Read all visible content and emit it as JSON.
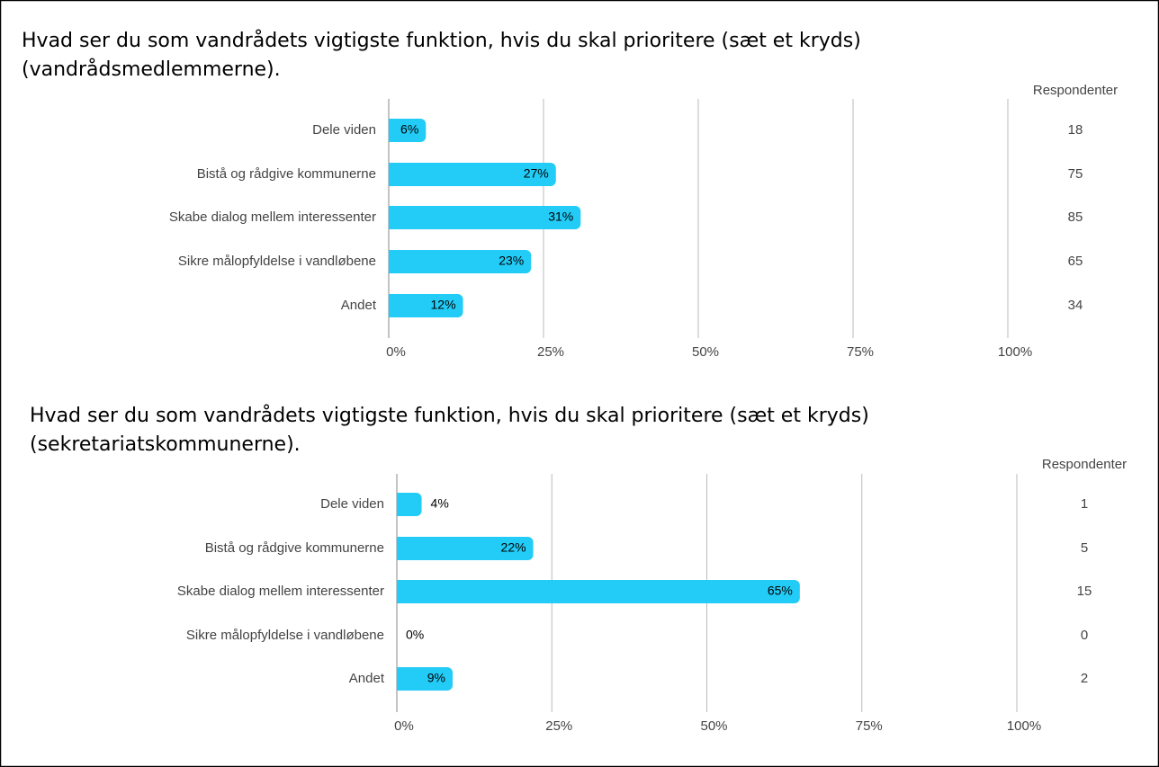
{
  "chart_data": [
    {
      "type": "bar",
      "title": [
        "Hvad ser du som vandrådets vigtigste funktion, hvis du skal prioritere (sæt et kryds)",
        "(vandrådsmedlemmerne)."
      ],
      "categories": [
        "Dele viden",
        "Bistå og rådgive kommunerne",
        "Skabe dialog mellem interessenter",
        "Sikre målopfyldelse i vandløbene",
        "Andet"
      ],
      "values": [
        6,
        27,
        31,
        23,
        12
      ],
      "value_labels": [
        "6%",
        "27%",
        "31%",
        "23%",
        "12%"
      ],
      "color": "#22ccf7",
      "xlim": [
        0,
        100
      ],
      "xticks": [
        {
          "value": 0,
          "label": "0%"
        },
        {
          "value": 25,
          "label": "25%"
        },
        {
          "value": 50,
          "label": "50%"
        },
        {
          "value": 75,
          "label": "75%"
        },
        {
          "value": 100,
          "label": "100%"
        }
      ],
      "grid": true,
      "respondents_label": "Respondenter",
      "respondents": [
        18,
        75,
        85,
        65,
        34
      ]
    },
    {
      "type": "bar",
      "title": [
        "Hvad ser du som vandrådets vigtigste funktion, hvis du skal prioritere (sæt et kryds)",
        "(sekretariatskommunerne)."
      ],
      "categories": [
        "Dele viden",
        "Bistå og rådgive kommunerne",
        "Skabe dialog mellem interessenter",
        "Sikre målopfyldelse i vandløbene",
        "Andet"
      ],
      "values": [
        4,
        22,
        65,
        0,
        9
      ],
      "value_labels": [
        "4%",
        "22%",
        "65%",
        "0%",
        "9%"
      ],
      "color": "#22ccf7",
      "xlim": [
        0,
        100
      ],
      "xticks": [
        {
          "value": 0,
          "label": "0%"
        },
        {
          "value": 25,
          "label": "25%"
        },
        {
          "value": 50,
          "label": "50%"
        },
        {
          "value": 75,
          "label": "75%"
        },
        {
          "value": 100,
          "label": "100%"
        }
      ],
      "grid": true,
      "respondents_label": "Respondenter",
      "respondents": [
        1,
        5,
        15,
        0,
        2
      ]
    }
  ]
}
